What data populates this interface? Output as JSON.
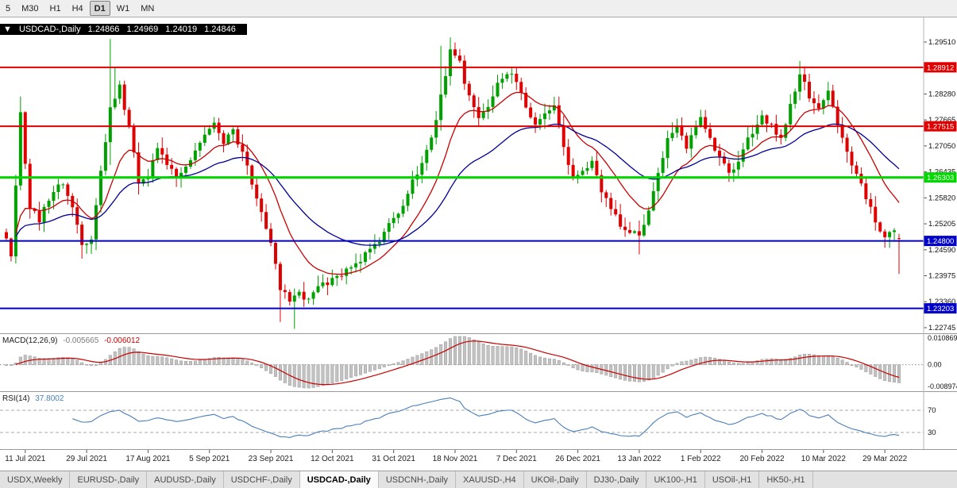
{
  "toolbar": {
    "buttons": [
      "5",
      "M30",
      "H1",
      "H4",
      "D1",
      "W1",
      "MN"
    ],
    "active": "D1"
  },
  "info_bar": {
    "collapse_icon": "▼",
    "symbol": "USDCAD-,Daily",
    "open": "1.24866",
    "high": "1.24969",
    "low": "1.24019",
    "close": "1.24846"
  },
  "indicators": {
    "macd": {
      "title": "MACD(12,26,9)",
      "main_value": "-0.005665",
      "signal_value": "-0.006012",
      "params": [
        12,
        26,
        9
      ],
      "axis_labels": {
        "top": "0.010869",
        "zero": "0.00",
        "bottom": "-0.008974"
      },
      "histogram_color": "#C2C2C2",
      "signal_color": "#C80000"
    },
    "rsi": {
      "title": "RSI(14)",
      "value": "37.8002",
      "period": 14,
      "levels": [
        70,
        30
      ],
      "line_color": "#4A7EBB"
    }
  },
  "tabs": {
    "items": [
      "USDX,Weekly",
      "EURUSD-,Daily",
      "AUDUSD-,Daily",
      "USDCHF-,Daily",
      "USDCAD-,Daily",
      "USDCNH-,Daily",
      "XAUUSD-,H4",
      "UKOil-,Daily",
      "DJ30-,Daily",
      "UK100-,H1",
      "USOil-,H1",
      "HK50-,H1"
    ],
    "active": "USDCAD-,Daily"
  },
  "chart_data": {
    "type": "candlestick",
    "symbol": "USDCAD-",
    "timeframe": "Daily",
    "bars": 190,
    "candle_up_color": "#00A000",
    "candle_down_color": "#E10000",
    "price_axis": {
      "tick_labels": [
        "1.29510",
        "1.28895",
        "1.28280",
        "1.27665",
        "1.27050",
        "1.26435",
        "1.25820",
        "1.25205",
        "1.24590",
        "1.23975",
        "1.23360",
        "1.22745"
      ],
      "view_max": 1.2963,
      "view_min": 1.22632
    },
    "hlines": [
      {
        "price": 1.28912,
        "label": "1.28912",
        "color": "#E10000",
        "width": 2
      },
      {
        "price": 1.27515,
        "label": "1.27515",
        "color": "#E10000",
        "width": 2
      },
      {
        "price": 1.26303,
        "label": "1.26303",
        "color": "#00D800",
        "width": 3
      },
      {
        "price": 1.248,
        "label": "1.24800",
        "color": "#0000C8",
        "width": 2
      },
      {
        "price": 1.23203,
        "label": "1.23203",
        "color": "#0000C8",
        "width": 2
      }
    ],
    "ma_overlays": [
      {
        "name": "ma-fast",
        "period": 13,
        "color": "#C80000"
      },
      {
        "name": "ma-slow",
        "period": 34,
        "color": "#000096"
      }
    ],
    "close_waypoints": [
      [
        0,
        1.248
      ],
      [
        1,
        1.2445
      ],
      [
        3,
        1.278
      ],
      [
        5,
        1.256
      ],
      [
        7,
        1.253
      ],
      [
        10,
        1.26
      ],
      [
        12,
        1.262
      ],
      [
        14,
        1.256
      ],
      [
        16,
        1.2465
      ],
      [
        18,
        1.249
      ],
      [
        20,
        1.264
      ],
      [
        22,
        1.279
      ],
      [
        24,
        1.2845
      ],
      [
        26,
        1.275
      ],
      [
        28,
        1.262
      ],
      [
        30,
        1.264
      ],
      [
        32,
        1.27
      ],
      [
        34,
        1.266
      ],
      [
        36,
        1.263
      ],
      [
        38,
        1.266
      ],
      [
        40,
        1.269
      ],
      [
        42,
        1.273
      ],
      [
        44,
        1.276
      ],
      [
        46,
        1.271
      ],
      [
        48,
        1.274
      ],
      [
        50,
        1.269
      ],
      [
        52,
        1.262
      ],
      [
        54,
        1.255
      ],
      [
        56,
        1.248
      ],
      [
        58,
        1.237
      ],
      [
        60,
        1.2335
      ],
      [
        62,
        1.2355
      ],
      [
        64,
        1.234
      ],
      [
        66,
        1.237
      ],
      [
        69,
        1.2385
      ],
      [
        72,
        1.241
      ],
      [
        75,
        1.2435
      ],
      [
        78,
        1.247
      ],
      [
        80,
        1.25
      ],
      [
        82,
        1.253
      ],
      [
        84,
        1.257
      ],
      [
        86,
        1.262
      ],
      [
        88,
        1.266
      ],
      [
        90,
        1.272
      ],
      [
        92,
        1.282
      ],
      [
        94,
        1.293
      ],
      [
        96,
        1.29
      ],
      [
        98,
        1.282
      ],
      [
        100,
        1.277
      ],
      [
        102,
        1.28
      ],
      [
        104,
        1.285
      ],
      [
        106,
        1.288
      ],
      [
        108,
        1.286
      ],
      [
        110,
        1.28
      ],
      [
        112,
        1.275
      ],
      [
        114,
        1.278
      ],
      [
        116,
        1.28
      ],
      [
        118,
        1.27
      ],
      [
        120,
        1.263
      ],
      [
        122,
        1.265
      ],
      [
        124,
        1.267
      ],
      [
        126,
        1.259
      ],
      [
        128,
        1.256
      ],
      [
        130,
        1.252
      ],
      [
        132,
        1.2505
      ],
      [
        134,
        1.249
      ],
      [
        136,
        1.256
      ],
      [
        138,
        1.264
      ],
      [
        140,
        1.272
      ],
      [
        142,
        1.276
      ],
      [
        144,
        1.27
      ],
      [
        146,
        1.275
      ],
      [
        147,
        1.2775
      ],
      [
        149,
        1.272
      ],
      [
        151,
        1.268
      ],
      [
        153,
        1.2645
      ],
      [
        155,
        1.2665
      ],
      [
        157,
        1.272
      ],
      [
        159,
        1.276
      ],
      [
        160,
        1.278
      ],
      [
        162,
        1.275
      ],
      [
        164,
        1.272
      ],
      [
        166,
        1.28
      ],
      [
        168,
        1.288
      ],
      [
        170,
        1.282
      ],
      [
        172,
        1.28
      ],
      [
        174,
        1.284
      ],
      [
        176,
        1.275
      ],
      [
        178,
        1.269
      ],
      [
        180,
        1.264
      ],
      [
        182,
        1.258
      ],
      [
        184,
        1.253
      ],
      [
        186,
        1.249
      ],
      [
        188,
        1.2505
      ],
      [
        189,
        1.24846
      ]
    ],
    "wick_overrides": [
      [
        3,
        "h",
        1.2822
      ],
      [
        16,
        "l",
        1.2438
      ],
      [
        22,
        "h",
        1.2958
      ],
      [
        22,
        "l",
        1.266
      ],
      [
        23,
        "h",
        1.2892
      ],
      [
        58,
        "l",
        1.2288
      ],
      [
        61,
        "l",
        1.2272
      ],
      [
        92,
        "h",
        1.2942
      ],
      [
        94,
        "h",
        1.2962
      ],
      [
        95,
        "h",
        1.295
      ],
      [
        134,
        "l",
        1.2448
      ],
      [
        168,
        "h",
        1.2906
      ]
    ],
    "last_bar": {
      "open": 1.24866,
      "high": 1.24969,
      "low": 1.24019,
      "close": 1.24846
    },
    "date_labels": [
      {
        "i": 4,
        "label": "11 Jul 2021"
      },
      {
        "i": 17,
        "label": "29 Jul 2021"
      },
      {
        "i": 30,
        "label": "17 Aug 2021"
      },
      {
        "i": 43,
        "label": "5 Sep 2021"
      },
      {
        "i": 56,
        "label": "23 Sep 2021"
      },
      {
        "i": 69,
        "label": "12 Oct 2021"
      },
      {
        "i": 82,
        "label": "31 Oct 2021"
      },
      {
        "i": 95,
        "label": "18 Nov 2021"
      },
      {
        "i": 108,
        "label": "7 Dec 2021"
      },
      {
        "i": 121,
        "label": "26 Dec 2021"
      },
      {
        "i": 134,
        "label": "13 Jan 2022"
      },
      {
        "i": 147,
        "label": "1 Feb 2022"
      },
      {
        "i": 160,
        "label": "20 Feb 2022"
      },
      {
        "i": 173,
        "label": "10 Mar 2022"
      },
      {
        "i": 186,
        "label": "29 Mar 2022"
      }
    ]
  }
}
